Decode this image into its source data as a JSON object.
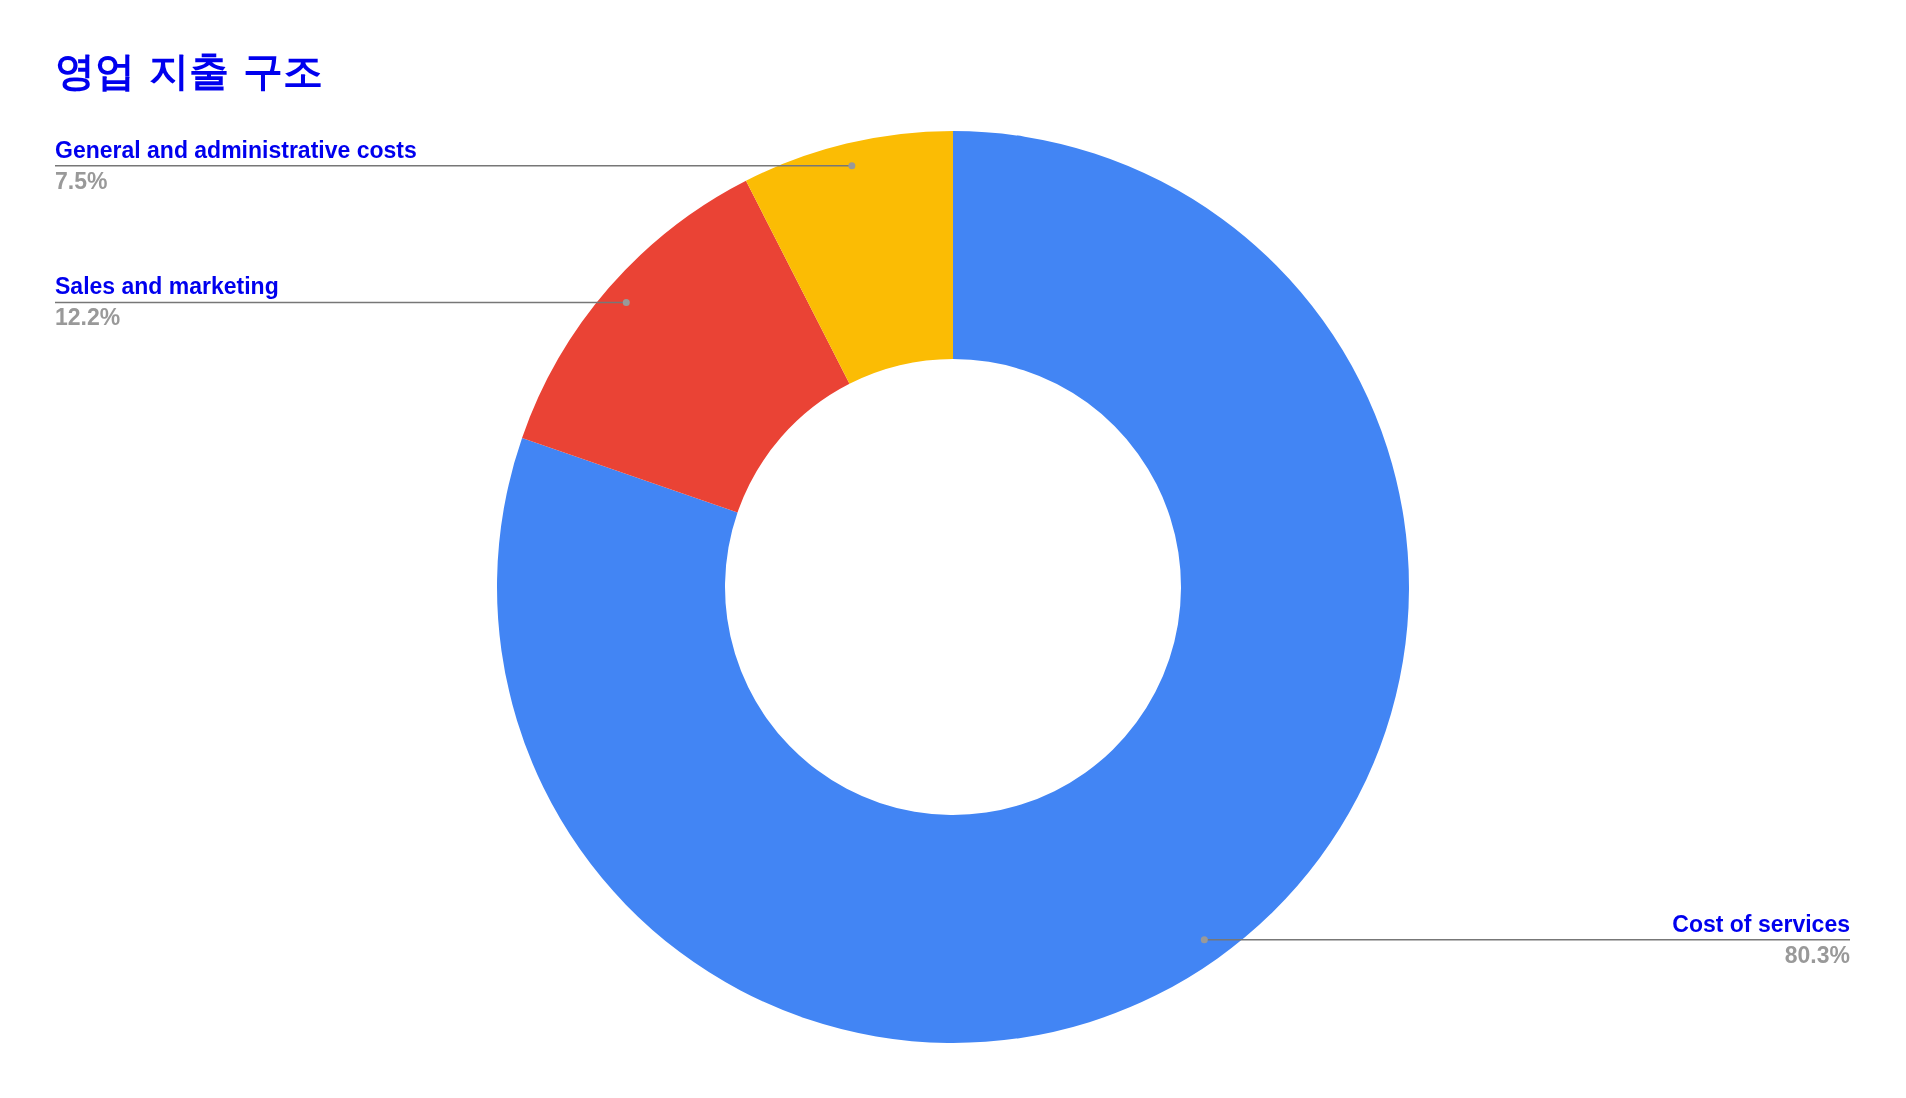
{
  "chart_data": {
    "type": "donut",
    "title": "영업 지출 구조",
    "categories": [
      "Cost of services",
      "Sales and marketing",
      "General and administrative costs"
    ],
    "values": [
      80.3,
      12.2,
      7.5
    ],
    "colors": [
      "#4285f4",
      "#ea4335",
      "#fbbc04"
    ],
    "value_labels": [
      "80.3%",
      "12.2%",
      "7.5%"
    ],
    "legend": false
  }
}
